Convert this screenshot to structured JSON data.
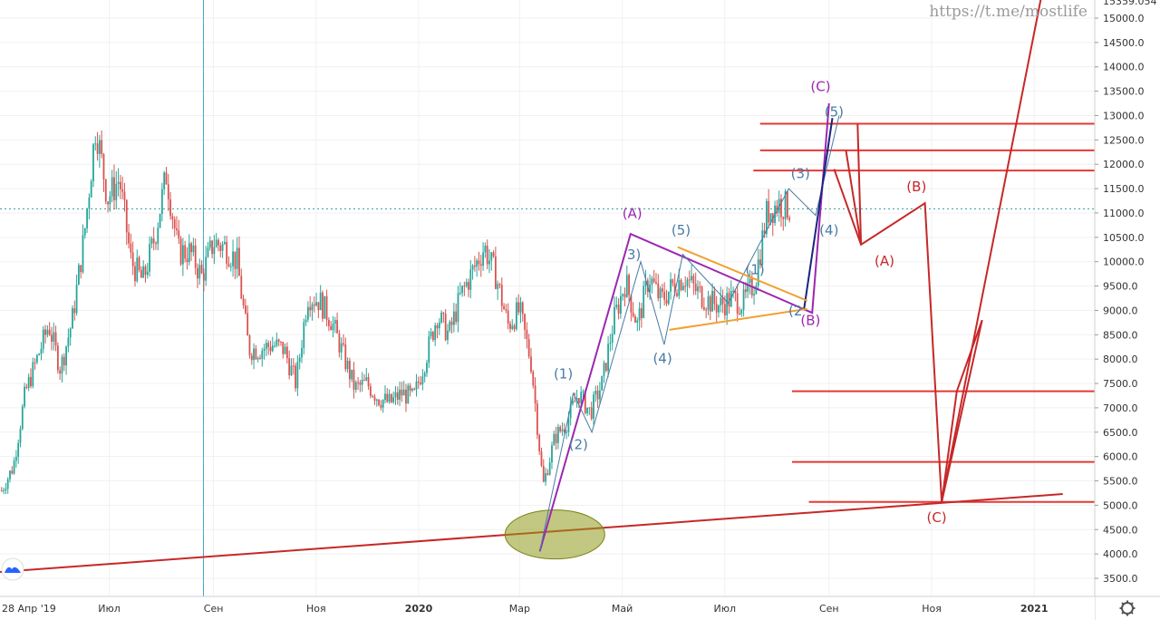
{
  "watermark": "https://t.me/mostlife",
  "top_price_label": "15359.054",
  "icons": {
    "logo": "tradingview-logo-icon",
    "settings": "gear-icon"
  },
  "colors": {
    "bull": "#26a69a",
    "bear": "#d9534f",
    "level": "#e53935",
    "wave_purple": "#9c27b0",
    "wave_blue": "#4a7ba6",
    "wave_red": "#c62828",
    "triangle": "#f0a030",
    "trend": "#c62828",
    "current": "#2e9c9c",
    "ellipse": "#8f9a1a",
    "axis_bg": "#ffffff"
  },
  "chart_data": {
    "type": "candlestick",
    "x_axis_labels": [
      "28 Апр '19",
      "Июл",
      "Сен",
      "Ноя",
      "2020",
      "Мар",
      "Май",
      "Июл",
      "Сен",
      "Ноя",
      "2021"
    ],
    "y_ticks": [
      3500,
      4000,
      4500,
      5000,
      5500,
      6000,
      6500,
      7000,
      7500,
      8000,
      8500,
      9000,
      9500,
      10000,
      10500,
      11000,
      11500,
      12000,
      12500,
      13000,
      13500,
      14000,
      14500,
      15000
    ],
    "y_range": [
      3050,
      15400
    ],
    "current_price": "11085.562",
    "price_levels": [
      "12832.536",
      "12286.395",
      "11870.602",
      "7340.641",
      "5889.897",
      "5067.305"
    ],
    "price_series": [
      {
        "date": "2019-04-28",
        "close": 5300
      },
      {
        "date": "2019-05-05",
        "close": 5800
      },
      {
        "date": "2019-05-12",
        "close": 7300
      },
      {
        "date": "2019-05-19",
        "close": 8000
      },
      {
        "date": "2019-05-26",
        "close": 8700
      },
      {
        "date": "2019-06-02",
        "close": 7800
      },
      {
        "date": "2019-06-09",
        "close": 8800
      },
      {
        "date": "2019-06-16",
        "close": 10500
      },
      {
        "date": "2019-06-23",
        "close": 12800
      },
      {
        "date": "2019-06-30",
        "close": 11300
      },
      {
        "date": "2019-07-07",
        "close": 11700
      },
      {
        "date": "2019-07-14",
        "close": 10000
      },
      {
        "date": "2019-07-21",
        "close": 9600
      },
      {
        "date": "2019-07-28",
        "close": 10500
      },
      {
        "date": "2019-08-04",
        "close": 11800
      },
      {
        "date": "2019-08-11",
        "close": 10200
      },
      {
        "date": "2019-08-18",
        "close": 10200
      },
      {
        "date": "2019-08-25",
        "close": 9700
      },
      {
        "date": "2019-09-01",
        "close": 10400
      },
      {
        "date": "2019-09-08",
        "close": 10300
      },
      {
        "date": "2019-09-15",
        "close": 10000
      },
      {
        "date": "2019-09-22",
        "close": 8200
      },
      {
        "date": "2019-09-29",
        "close": 8200
      },
      {
        "date": "2019-10-06",
        "close": 8300
      },
      {
        "date": "2019-10-13",
        "close": 8200
      },
      {
        "date": "2019-10-20",
        "close": 7500
      },
      {
        "date": "2019-10-27",
        "close": 9300
      },
      {
        "date": "2019-11-03",
        "close": 9200
      },
      {
        "date": "2019-11-10",
        "close": 8800
      },
      {
        "date": "2019-11-17",
        "close": 8100
      },
      {
        "date": "2019-11-24",
        "close": 7400
      },
      {
        "date": "2019-12-01",
        "close": 7500
      },
      {
        "date": "2019-12-08",
        "close": 7200
      },
      {
        "date": "2019-12-15",
        "close": 7100
      },
      {
        "date": "2019-12-22",
        "close": 7300
      },
      {
        "date": "2019-12-29",
        "close": 7200
      },
      {
        "date": "2020-01-05",
        "close": 8000
      },
      {
        "date": "2020-01-12",
        "close": 8900
      },
      {
        "date": "2020-01-19",
        "close": 8500
      },
      {
        "date": "2020-01-26",
        "close": 9300
      },
      {
        "date": "2020-02-02",
        "close": 9800
      },
      {
        "date": "2020-02-09",
        "close": 10300
      },
      {
        "date": "2020-02-16",
        "close": 9700
      },
      {
        "date": "2020-02-23",
        "close": 8700
      },
      {
        "date": "2020-03-01",
        "close": 9000
      },
      {
        "date": "2020-03-08",
        "close": 7900
      },
      {
        "date": "2020-03-15",
        "close": 5400
      },
      {
        "date": "2020-03-22",
        "close": 6400
      },
      {
        "date": "2020-03-29",
        "close": 6700
      },
      {
        "date": "2020-04-05",
        "close": 7300
      },
      {
        "date": "2020-04-12",
        "close": 6900
      },
      {
        "date": "2020-04-19",
        "close": 7500
      },
      {
        "date": "2020-04-26",
        "close": 8800
      },
      {
        "date": "2020-05-03",
        "close": 9600
      },
      {
        "date": "2020-05-10",
        "close": 8700
      },
      {
        "date": "2020-05-17",
        "close": 9700
      },
      {
        "date": "2020-05-24",
        "close": 9200
      },
      {
        "date": "2020-05-31",
        "close": 9500
      },
      {
        "date": "2020-06-07",
        "close": 9700
      },
      {
        "date": "2020-06-14",
        "close": 9400
      },
      {
        "date": "2020-06-21",
        "close": 9200
      },
      {
        "date": "2020-06-28",
        "close": 9100
      },
      {
        "date": "2020-07-05",
        "close": 9250
      },
      {
        "date": "2020-07-12",
        "close": 9150
      },
      {
        "date": "2020-07-19",
        "close": 9600
      },
      {
        "date": "2020-07-26",
        "close": 11000
      },
      {
        "date": "2020-08-02",
        "close": 11200
      },
      {
        "date": "2020-08-09",
        "close": 11085
      }
    ],
    "wave_labels": [
      {
        "text": "(C)",
        "color": "wave_purple",
        "date": "2020-08-27",
        "price": 13500
      },
      {
        "text": "(5)",
        "color": "wave_blue",
        "date": "2020-09-04",
        "price": 12980
      },
      {
        "text": "(3)",
        "color": "wave_blue",
        "date": "2020-08-15",
        "price": 11720
      },
      {
        "text": "(4)",
        "color": "wave_blue",
        "date": "2020-09-01",
        "price": 10550
      },
      {
        "text": "(A)",
        "color": "wave_purple",
        "date": "2020-05-07",
        "price": 10900
      },
      {
        "text": "(5)",
        "color": "wave_blue",
        "date": "2020-06-05",
        "price": 10550
      },
      {
        "text": "3)",
        "color": "wave_blue",
        "date": "2020-05-08",
        "price": 10050
      },
      {
        "text": "(1)",
        "color": "wave_blue",
        "date": "2020-07-19",
        "price": 9740
      },
      {
        "text": "(2",
        "color": "wave_blue",
        "date": "2020-08-12",
        "price": 8900
      },
      {
        "text": "(B)",
        "color": "wave_purple",
        "date": "2020-08-21",
        "price": 8700
      },
      {
        "text": "(4)",
        "color": "wave_blue",
        "date": "2020-05-25",
        "price": 7920
      },
      {
        "text": "(1)",
        "color": "wave_blue",
        "date": "2020-03-27",
        "price": 7600
      },
      {
        "text": "(2)",
        "color": "wave_blue",
        "date": "2020-04-05",
        "price": 6150
      },
      {
        "text": "(B)",
        "color": "wave_red",
        "date": "2020-10-23",
        "price": 11450
      },
      {
        "text": "(A)",
        "color": "wave_red",
        "date": "2020-10-04",
        "price": 9920
      },
      {
        "text": "(C)",
        "color": "wave_red",
        "date": "2020-11-04",
        "price": 4650
      }
    ],
    "paths": [
      {
        "name": "abc-purple",
        "color": "wave_purple",
        "width": 2,
        "points": [
          [
            "2020-03-13",
            4050
          ],
          [
            "2020-05-06",
            10570
          ],
          [
            "2020-08-22",
            8950
          ],
          [
            "2020-09-01",
            13250
          ]
        ]
      },
      {
        "name": "impulse-blue",
        "color": "wave_blue",
        "width": 1,
        "points": [
          [
            "2020-03-13",
            4050
          ],
          [
            "2020-04-02",
            7300
          ],
          [
            "2020-04-13",
            6500
          ],
          [
            "2020-05-12",
            10000
          ],
          [
            "2020-05-26",
            8300
          ],
          [
            "2020-06-06",
            10150
          ],
          [
            "2020-07-03",
            9150
          ],
          [
            "2020-08-08",
            11500
          ],
          [
            "2020-08-24",
            10950
          ],
          [
            "2020-09-07",
            13000
          ]
        ]
      },
      {
        "name": "impulse-navy",
        "color": "#1a237e",
        "width": 2,
        "points": [
          [
            "2020-08-17",
            9000
          ],
          [
            "2020-09-03",
            12950
          ]
        ]
      },
      {
        "name": "triangle-upper",
        "color": "triangle",
        "width": 2,
        "points": [
          [
            "2020-06-03",
            10300
          ],
          [
            "2020-08-19",
            9200
          ]
        ]
      },
      {
        "name": "triangle-lower",
        "color": "triangle",
        "width": 2,
        "points": [
          [
            "2020-05-29",
            8600
          ],
          [
            "2020-08-19",
            9030
          ]
        ]
      },
      {
        "name": "forecast-red",
        "color": "wave_red",
        "width": 2,
        "points": [
          [
            "2020-09-04",
            11900
          ],
          [
            "2020-09-20",
            10350
          ],
          [
            "2020-10-28",
            11200
          ],
          [
            "2020-11-07",
            5067
          ],
          [
            "2020-12-01",
            8800
          ]
        ]
      },
      {
        "name": "forecast-fan-1",
        "color": "wave_red",
        "width": 2,
        "points": [
          [
            "2020-09-11",
            12290
          ],
          [
            "2020-09-20",
            10350
          ]
        ]
      },
      {
        "name": "forecast-fan-2",
        "color": "wave_red",
        "width": 2,
        "points": [
          [
            "2020-09-18",
            12830
          ],
          [
            "2020-09-20",
            10350
          ]
        ]
      },
      {
        "name": "forecast-up-1",
        "color": "wave_red",
        "width": 2,
        "points": [
          [
            "2020-11-07",
            5067
          ],
          [
            "2021-01-05",
            15400
          ]
        ]
      },
      {
        "name": "forecast-up-2",
        "color": "wave_red",
        "width": 2,
        "points": [
          [
            "2020-11-07",
            5067
          ],
          [
            "2020-11-16",
            7340
          ],
          [
            "2020-12-01",
            8800
          ]
        ]
      }
    ],
    "trendline": {
      "start": [
        "2019-04-23",
        3620
      ],
      "end": [
        "2021-01-18",
        5230
      ]
    },
    "ellipse_center": [
      "2020-03-22",
      4400
    ],
    "vertical_marker_date": "2019-08-26"
  }
}
